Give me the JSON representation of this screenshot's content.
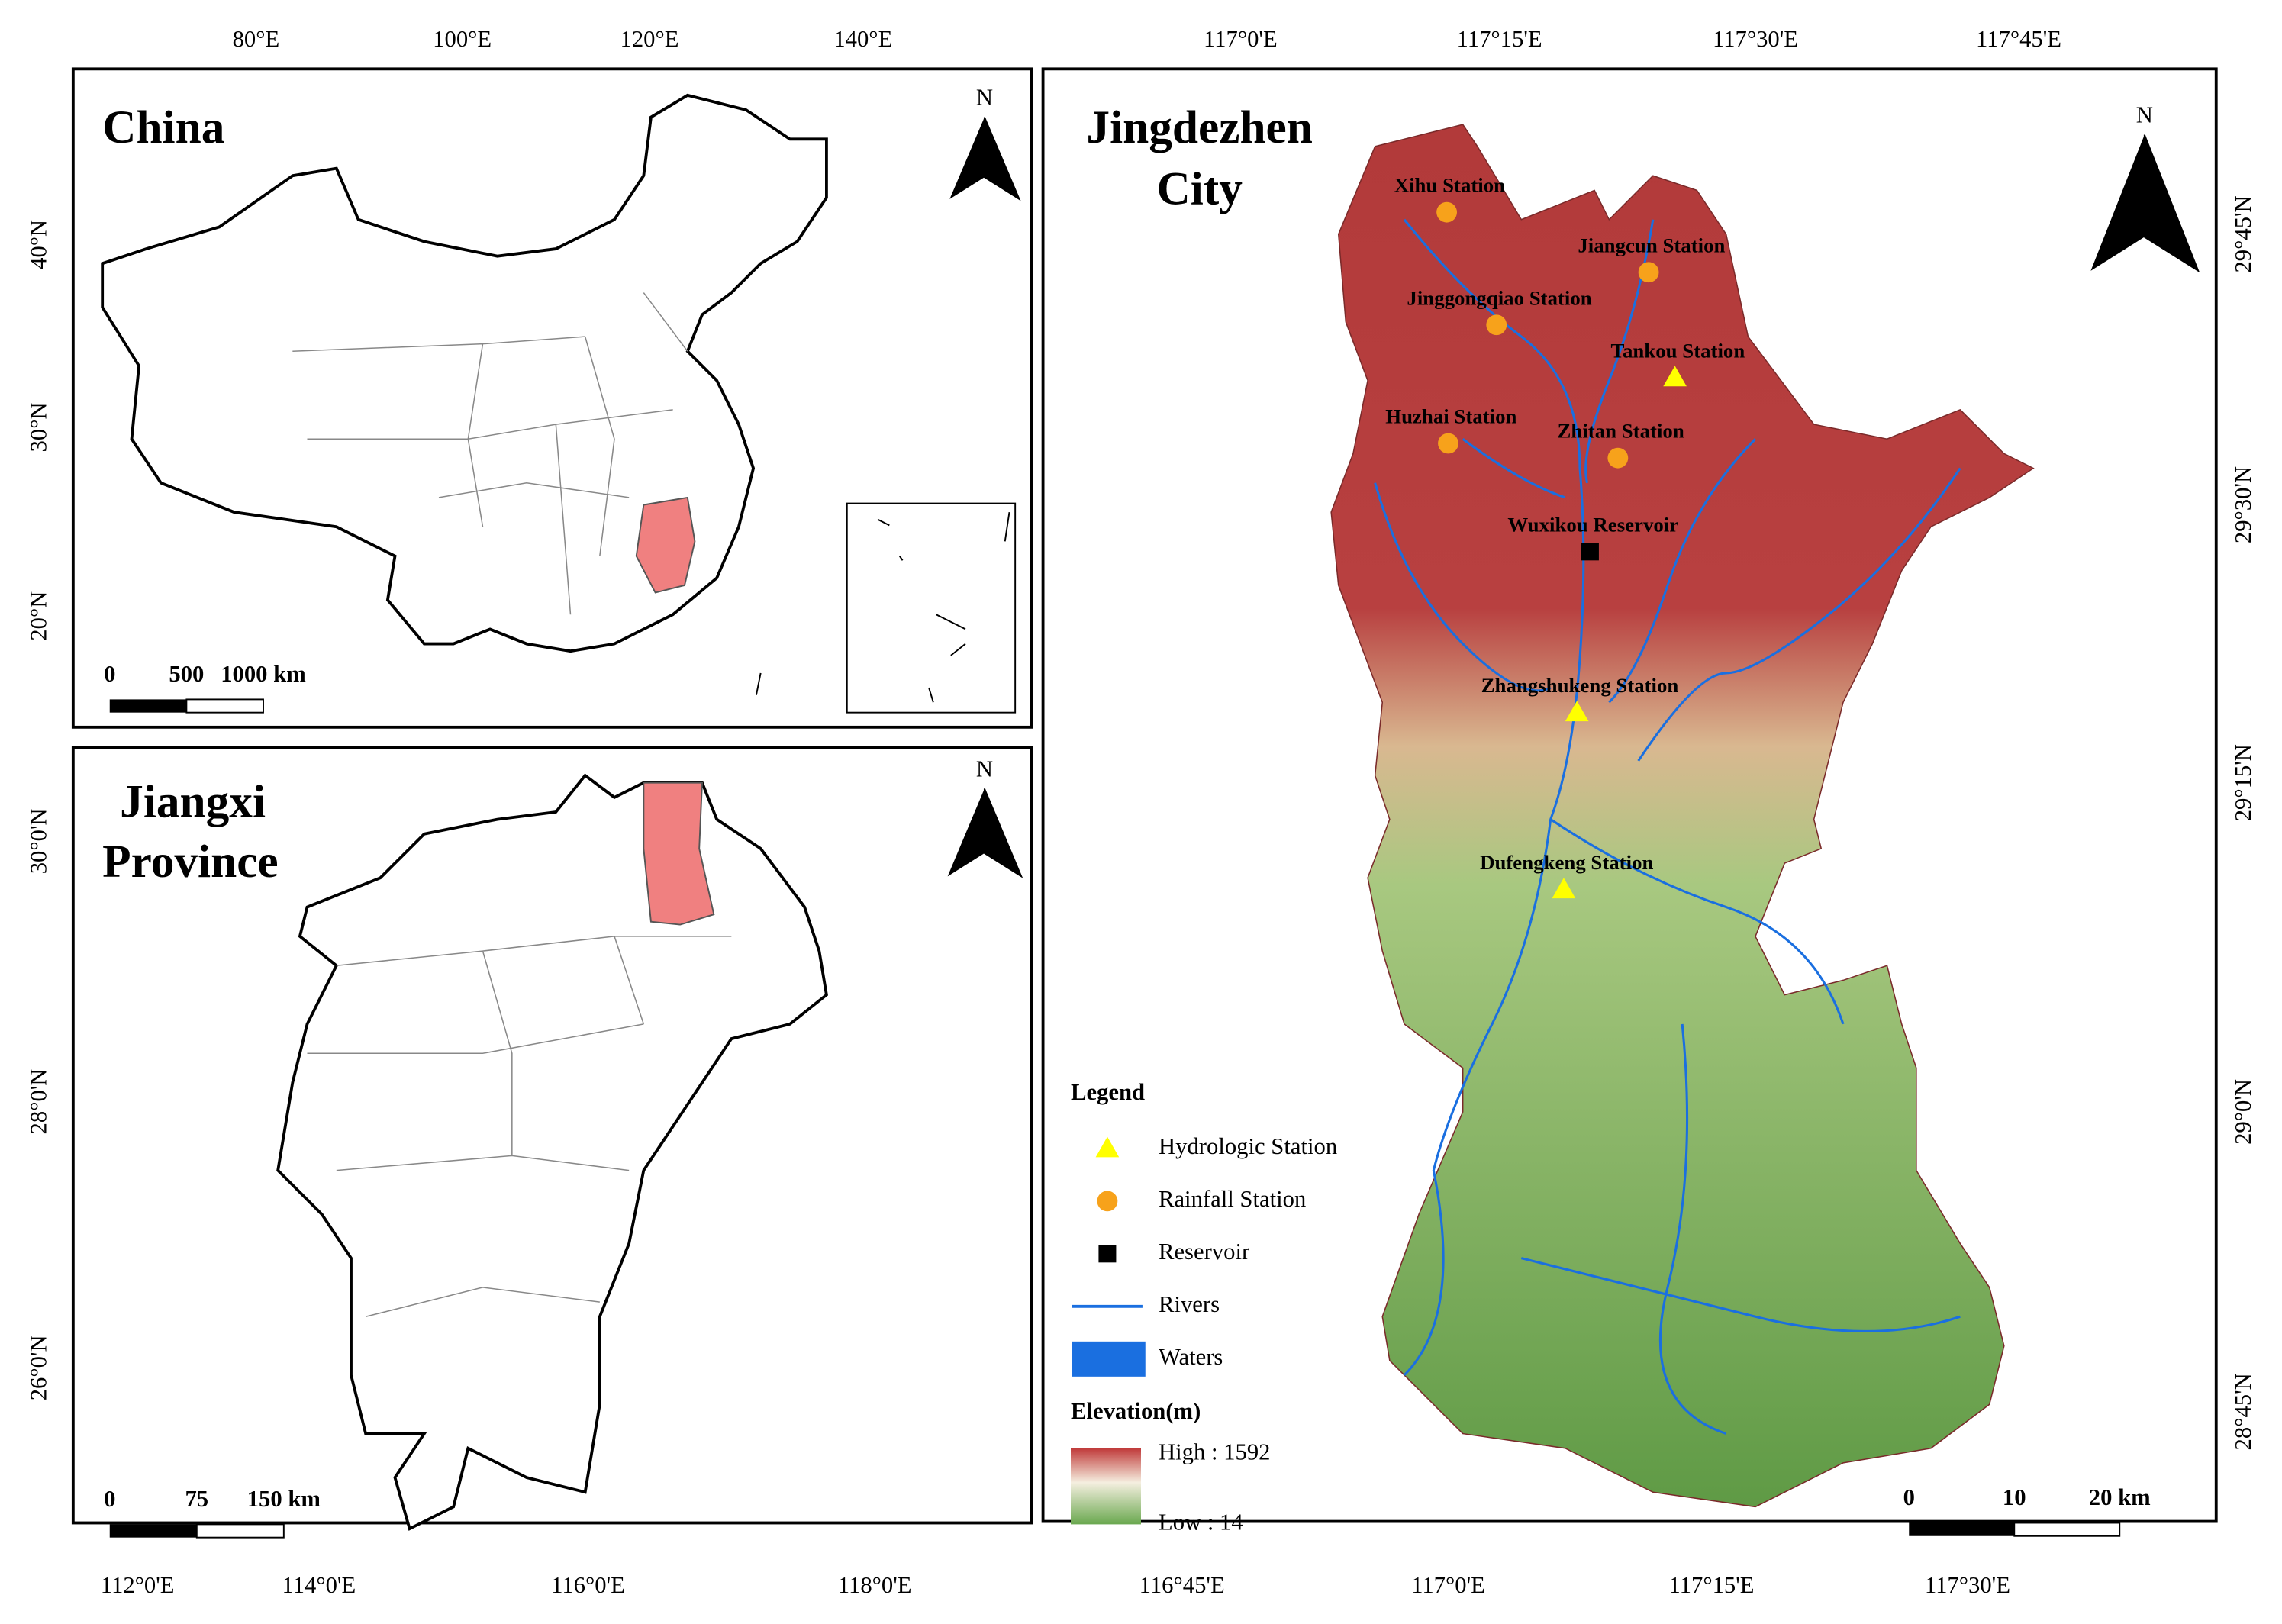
{
  "china_panel": {
    "title": "China",
    "x_ticks": [
      "80°E",
      "100°E",
      "120°E",
      "140°E"
    ],
    "y_ticks": [
      "40°N",
      "30°N",
      "20°N"
    ],
    "scale": [
      "0",
      "500",
      "1000 km"
    ],
    "north": "N"
  },
  "jiangxi_panel": {
    "title_lines": [
      "Jiangxi",
      "Province"
    ],
    "x_ticks": [
      "112°0'E",
      "114°0'E",
      "116°0'E",
      "118°0'E"
    ],
    "y_ticks": [
      "30°0'N",
      "28°0'N",
      "26°0'N"
    ],
    "scale": [
      "0",
      "75",
      "150 km"
    ],
    "north": "N"
  },
  "jingdezhen_panel": {
    "title_lines": [
      "Jingdezhen",
      "City"
    ],
    "top_ticks": [
      "117°0'E",
      "117°15'E",
      "117°30'E",
      "117°45'E"
    ],
    "bottom_ticks": [
      "116°45'E",
      "117°0'E",
      "117°15'E",
      "117°30'E"
    ],
    "right_ticks": [
      "29°45'N",
      "29°30'N",
      "29°15'N",
      "29°0'N",
      "28°45'N"
    ],
    "stations": [
      {
        "name": "Xihu Station",
        "type": "rainfall"
      },
      {
        "name": "Jiangcun Station",
        "type": "rainfall"
      },
      {
        "name": "Jinggongqiao Station",
        "type": "rainfall"
      },
      {
        "name": "Tankou Station",
        "type": "hydrologic"
      },
      {
        "name": "Huzhai Station",
        "type": "rainfall"
      },
      {
        "name": "Zhitan Station",
        "type": "rainfall"
      },
      {
        "name": "Wuxikou Reservoir",
        "type": "reservoir"
      },
      {
        "name": "Zhangshukeng Station",
        "type": "hydrologic"
      },
      {
        "name": "Dufengkeng Station",
        "type": "hydrologic"
      }
    ],
    "legend": {
      "title": "Legend",
      "items": [
        {
          "label": "Hydrologic Station",
          "type": "hydrologic"
        },
        {
          "label": "Rainfall Station",
          "type": "rainfall"
        },
        {
          "label": "Reservoir",
          "type": "reservoir"
        },
        {
          "label": "Rivers",
          "type": "river"
        },
        {
          "label": "Waters",
          "type": "water"
        }
      ],
      "elevation_title": "Elevation(m)",
      "high": "High : 1592",
      "low": "Low : 14"
    },
    "scale": [
      "0",
      "10",
      "20 km"
    ],
    "north": "N"
  }
}
